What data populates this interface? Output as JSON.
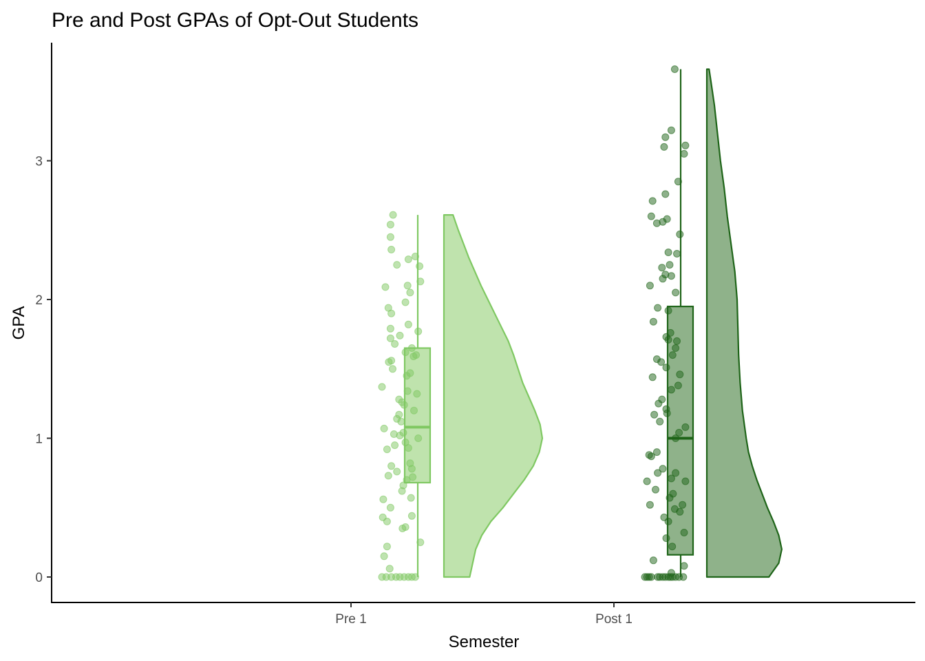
{
  "chart_data": {
    "type": "raincloud",
    "title": "Pre and Post GPAs of Opt-Out Students",
    "xlabel": "Semester",
    "ylabel": "GPA",
    "categories": [
      "Pre 1",
      "Post 1"
    ],
    "ylim": [
      -0.18,
      3.83
    ],
    "yticks": [
      0,
      1,
      2,
      3
    ],
    "grid": false,
    "legend": "none",
    "series": [
      {
        "category": "Pre 1",
        "color": "#7fc862",
        "fill": "#bfe3ad",
        "box": {
          "min": 0.0,
          "q1": 0.68,
          "median": 1.08,
          "q3": 1.65,
          "max": 2.61
        },
        "density": [
          [
            0.0,
            0.34
          ],
          [
            0.1,
            0.38
          ],
          [
            0.2,
            0.42
          ],
          [
            0.3,
            0.5
          ],
          [
            0.4,
            0.62
          ],
          [
            0.5,
            0.78
          ],
          [
            0.6,
            0.92
          ],
          [
            0.7,
            1.06
          ],
          [
            0.8,
            1.18
          ],
          [
            0.9,
            1.26
          ],
          [
            1.0,
            1.3
          ],
          [
            1.1,
            1.27
          ],
          [
            1.2,
            1.2
          ],
          [
            1.3,
            1.12
          ],
          [
            1.4,
            1.04
          ],
          [
            1.5,
            0.98
          ],
          [
            1.6,
            0.92
          ],
          [
            1.7,
            0.85
          ],
          [
            1.8,
            0.76
          ],
          [
            1.9,
            0.67
          ],
          [
            2.0,
            0.58
          ],
          [
            2.1,
            0.49
          ],
          [
            2.2,
            0.41
          ],
          [
            2.3,
            0.33
          ],
          [
            2.4,
            0.26
          ],
          [
            2.5,
            0.19
          ],
          [
            2.61,
            0.12
          ]
        ],
        "points": [
          [
            0.0,
            0.0
          ],
          [
            0.0,
            0.1
          ],
          [
            0.0,
            0.22
          ],
          [
            0.0,
            0.33
          ],
          [
            0.0,
            0.42
          ],
          [
            0.0,
            0.52
          ],
          [
            0.0,
            0.62
          ],
          [
            0.0,
            0.7
          ],
          [
            0.0,
            0.78
          ],
          [
            0.06,
            0.18
          ],
          [
            0.15,
            0.05
          ],
          [
            0.22,
            0.12
          ],
          [
            0.25,
            0.9
          ],
          [
            0.36,
            0.55
          ],
          [
            0.35,
            0.48
          ],
          [
            0.4,
            0.12
          ],
          [
            0.43,
            0.02
          ],
          [
            0.44,
            0.7
          ],
          [
            0.5,
            0.2
          ],
          [
            0.56,
            0.03
          ],
          [
            0.57,
            0.68
          ],
          [
            0.62,
            0.47
          ],
          [
            0.66,
            0.5
          ],
          [
            0.7,
            0.58
          ],
          [
            0.72,
            0.72
          ],
          [
            0.73,
            0.15
          ],
          [
            0.76,
            0.35
          ],
          [
            0.78,
            0.7
          ],
          [
            0.8,
            0.22
          ],
          [
            0.82,
            0.66
          ],
          [
            0.92,
            0.12
          ],
          [
            0.93,
            0.62
          ],
          [
            0.95,
            0.3
          ],
          [
            0.97,
            0.55
          ],
          [
            1.0,
            0.85
          ],
          [
            1.02,
            0.42
          ],
          [
            1.03,
            0.28
          ],
          [
            1.04,
            0.5
          ],
          [
            1.07,
            0.05
          ],
          [
            1.12,
            0.45
          ],
          [
            1.14,
            0.35
          ],
          [
            1.17,
            0.4
          ],
          [
            1.2,
            0.75
          ],
          [
            1.24,
            0.52
          ],
          [
            1.26,
            0.47
          ],
          [
            1.28,
            0.4
          ],
          [
            1.32,
            0.82
          ],
          [
            1.34,
            0.6
          ],
          [
            1.37,
            0.0
          ],
          [
            1.45,
            0.58
          ],
          [
            1.47,
            0.66
          ],
          [
            1.5,
            0.25
          ],
          [
            1.55,
            0.16
          ],
          [
            1.56,
            0.22
          ],
          [
            1.59,
            0.74
          ],
          [
            1.6,
            0.8
          ],
          [
            1.62,
            0.55
          ],
          [
            1.65,
            0.7
          ],
          [
            1.68,
            0.3
          ],
          [
            1.72,
            0.2
          ],
          [
            1.74,
            0.42
          ],
          [
            1.77,
            0.85
          ],
          [
            1.79,
            0.2
          ],
          [
            1.82,
            0.62
          ],
          [
            1.9,
            0.22
          ],
          [
            1.94,
            0.15
          ],
          [
            1.98,
            0.55
          ],
          [
            2.05,
            0.66
          ],
          [
            2.09,
            0.08
          ],
          [
            2.1,
            0.6
          ],
          [
            2.13,
            0.9
          ],
          [
            2.24,
            0.88
          ],
          [
            2.25,
            0.35
          ],
          [
            2.29,
            0.62
          ],
          [
            2.31,
            0.78
          ],
          [
            2.36,
            0.22
          ],
          [
            2.45,
            0.2
          ],
          [
            2.54,
            0.2
          ],
          [
            2.61,
            0.26
          ]
        ]
      },
      {
        "category": "Post 1",
        "color": "#1e6418",
        "fill": "#8fb28a",
        "box": {
          "min": 0.0,
          "q1": 0.16,
          "median": 1.0,
          "q3": 1.95,
          "max": 3.66
        },
        "density": [
          [
            0.0,
            0.82
          ],
          [
            0.1,
            0.95
          ],
          [
            0.2,
            0.99
          ],
          [
            0.3,
            0.95
          ],
          [
            0.4,
            0.88
          ],
          [
            0.5,
            0.8
          ],
          [
            0.6,
            0.73
          ],
          [
            0.7,
            0.66
          ],
          [
            0.8,
            0.6
          ],
          [
            0.9,
            0.55
          ],
          [
            1.0,
            0.52
          ],
          [
            1.2,
            0.47
          ],
          [
            1.4,
            0.44
          ],
          [
            1.6,
            0.42
          ],
          [
            1.8,
            0.41
          ],
          [
            2.0,
            0.4
          ],
          [
            2.2,
            0.37
          ],
          [
            2.4,
            0.32
          ],
          [
            2.6,
            0.27
          ],
          [
            2.8,
            0.23
          ],
          [
            3.0,
            0.18
          ],
          [
            3.2,
            0.14
          ],
          [
            3.4,
            0.1
          ],
          [
            3.55,
            0.06
          ],
          [
            3.66,
            0.03
          ]
        ],
        "points": [
          [
            0.0,
            0.0
          ],
          [
            0.0,
            0.05
          ],
          [
            0.0,
            0.1
          ],
          [
            0.0,
            0.15
          ],
          [
            0.0,
            0.3
          ],
          [
            0.0,
            0.35
          ],
          [
            0.0,
            0.42
          ],
          [
            0.0,
            0.48
          ],
          [
            0.0,
            0.55
          ],
          [
            0.0,
            0.6
          ],
          [
            0.0,
            0.65
          ],
          [
            0.0,
            0.72
          ],
          [
            0.0,
            0.8
          ],
          [
            0.0,
            0.9
          ],
          [
            0.03,
            0.62
          ],
          [
            0.08,
            0.92
          ],
          [
            0.12,
            0.2
          ],
          [
            0.22,
            0.64
          ],
          [
            0.28,
            0.5
          ],
          [
            0.32,
            0.92
          ],
          [
            0.4,
            0.55
          ],
          [
            0.43,
            0.45
          ],
          [
            0.47,
            0.82
          ],
          [
            0.49,
            0.7
          ],
          [
            0.52,
            0.12
          ],
          [
            0.52,
            0.88
          ],
          [
            0.57,
            0.58
          ],
          [
            0.6,
            0.66
          ],
          [
            0.63,
            0.25
          ],
          [
            0.69,
            0.05
          ],
          [
            0.69,
            0.95
          ],
          [
            0.71,
            0.62
          ],
          [
            0.75,
            0.72
          ],
          [
            0.75,
            0.3
          ],
          [
            0.78,
            0.42
          ],
          [
            0.87,
            0.15
          ],
          [
            0.88,
            0.1
          ],
          [
            0.9,
            0.28
          ],
          [
            1.0,
            0.72
          ],
          [
            1.04,
            0.8
          ],
          [
            1.08,
            0.95
          ],
          [
            1.12,
            0.35
          ],
          [
            1.17,
            0.22
          ],
          [
            1.18,
            0.52
          ],
          [
            1.21,
            0.5
          ],
          [
            1.25,
            0.32
          ],
          [
            1.28,
            0.4
          ],
          [
            1.35,
            0.62
          ],
          [
            1.38,
            0.78
          ],
          [
            1.44,
            0.18
          ],
          [
            1.46,
            0.82
          ],
          [
            1.51,
            0.5
          ],
          [
            1.55,
            0.38
          ],
          [
            1.57,
            0.28
          ],
          [
            1.6,
            0.65
          ],
          [
            1.65,
            0.72
          ],
          [
            1.7,
            0.75
          ],
          [
            1.71,
            0.55
          ],
          [
            1.73,
            0.5
          ],
          [
            1.76,
            0.6
          ],
          [
            1.84,
            0.2
          ],
          [
            1.92,
            0.55
          ],
          [
            1.94,
            0.3
          ],
          [
            2.05,
            0.72
          ],
          [
            2.1,
            0.12
          ],
          [
            2.15,
            0.42
          ],
          [
            2.17,
            0.62
          ],
          [
            2.18,
            0.48
          ],
          [
            2.23,
            0.4
          ],
          [
            2.25,
            0.58
          ],
          [
            2.33,
            0.75
          ],
          [
            2.34,
            0.55
          ],
          [
            2.47,
            0.82
          ],
          [
            2.55,
            0.28
          ],
          [
            2.56,
            0.42
          ],
          [
            2.58,
            0.52
          ],
          [
            2.6,
            0.15
          ],
          [
            2.71,
            0.18
          ],
          [
            2.76,
            0.48
          ],
          [
            2.85,
            0.78
          ],
          [
            3.05,
            0.92
          ],
          [
            3.1,
            0.45
          ],
          [
            3.11,
            0.95
          ],
          [
            3.17,
            0.48
          ],
          [
            3.22,
            0.62
          ],
          [
            3.66,
            0.7
          ]
        ]
      }
    ]
  }
}
